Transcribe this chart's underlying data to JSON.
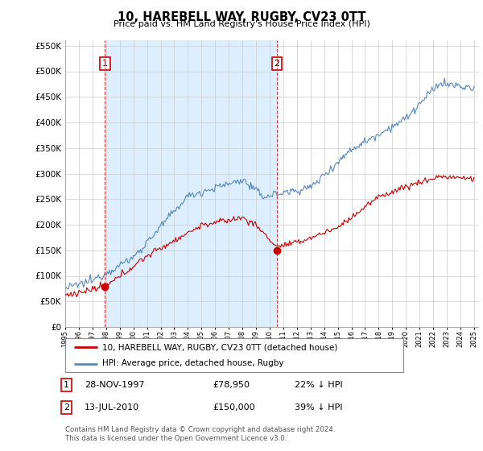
{
  "title": "10, HAREBELL WAY, RUGBY, CV23 0TT",
  "subtitle": "Price paid vs. HM Land Registry's House Price Index (HPI)",
  "legend_line1": "10, HAREBELL WAY, RUGBY, CV23 0TT (detached house)",
  "legend_line2": "HPI: Average price, detached house, Rugby",
  "annotation1_label": "1",
  "annotation1_date": "28-NOV-1997",
  "annotation1_price": "£78,950",
  "annotation1_pct": "22% ↓ HPI",
  "annotation2_label": "2",
  "annotation2_date": "13-JUL-2010",
  "annotation2_price": "£150,000",
  "annotation2_pct": "39% ↓ HPI",
  "footer": "Contains HM Land Registry data © Crown copyright and database right 2024.\nThis data is licensed under the Open Government Licence v3.0.",
  "red_color": "#cc0000",
  "blue_color": "#5588bb",
  "shade_color": "#ddeeff",
  "dashed_color": "#cc4444",
  "background_color": "#ffffff",
  "grid_color": "#cccccc",
  "ylim_min": 0,
  "ylim_max": 560000,
  "year_start": 1995,
  "year_end": 2025,
  "purchase1_year": 1997.91,
  "purchase1_value": 78950,
  "purchase2_year": 2010.53,
  "purchase2_value": 150000
}
